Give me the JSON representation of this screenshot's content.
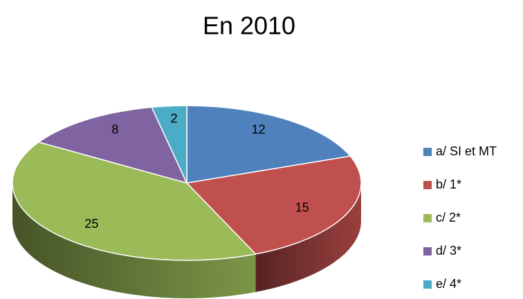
{
  "chart_data": {
    "type": "pie",
    "title": "En 2010",
    "categories": [
      "a/ SI et MT",
      "b/ 1*",
      "c/ 2*",
      "d/ 3*",
      "e/ 4*"
    ],
    "values": [
      12,
      15,
      25,
      8,
      2
    ],
    "colors": [
      "#4f81bd",
      "#c0504d",
      "#9bbb59",
      "#8064a2",
      "#4bacc6"
    ],
    "legend": "right"
  }
}
